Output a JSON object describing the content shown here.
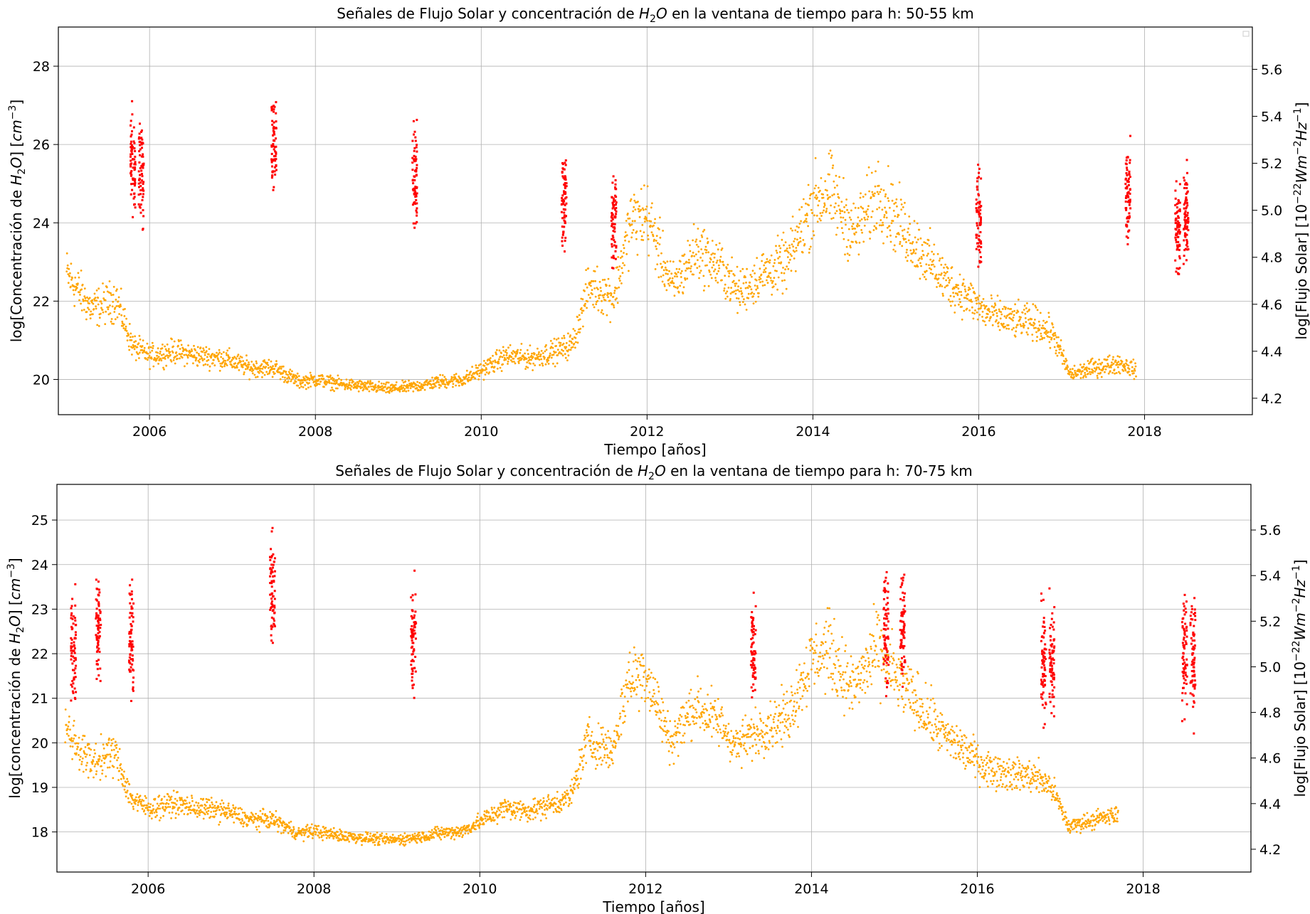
{
  "chart_data": [
    {
      "type": "scatter",
      "title_parts": [
        "Señales de Flujo Solar y concentración de ",
        "H",
        "2",
        "O",
        " en la ventana de tiempo para h: 50-55 km"
      ],
      "xlabel": "Tiempo [años]",
      "ylabel_parts": [
        "log[Concentración de ",
        "H",
        "2",
        "O",
        "] [",
        "cm",
        "−3",
        "]"
      ],
      "y2label_parts": [
        "log[Flujo Solar] [10",
        "−22",
        "Wm",
        "−2",
        "Hz",
        "−1",
        "]"
      ],
      "xlim": [
        2004.9,
        2019.3
      ],
      "ylim": [
        19.1,
        29.0
      ],
      "y2lim": [
        4.13,
        5.78
      ],
      "xticks": [
        "2006",
        "2008",
        "2010",
        "2012",
        "2014",
        "2016",
        "2018"
      ],
      "yticks": [
        "20",
        "22",
        "24",
        "26",
        "28"
      ],
      "y2ticks": [
        "4.2",
        "4.4",
        "4.6",
        "4.8",
        "5.0",
        "5.2",
        "5.4",
        "5.6"
      ],
      "grid": true,
      "legend": "top-right (empty)",
      "series": [
        {
          "axis": "right",
          "color": "#ffa500",
          "values": [
            [
              2005.0,
              4.73
            ],
            [
              2005.3,
              4.58
            ],
            [
              2005.6,
              4.62
            ],
            [
              2005.8,
              4.42
            ],
            [
              2006.0,
              4.38
            ],
            [
              2006.3,
              4.4
            ],
            [
              2006.6,
              4.38
            ],
            [
              2006.9,
              4.37
            ],
            [
              2007.2,
              4.33
            ],
            [
              2007.5,
              4.33
            ],
            [
              2007.8,
              4.27
            ],
            [
              2008.0,
              4.28
            ],
            [
              2008.3,
              4.26
            ],
            [
              2008.6,
              4.25
            ],
            [
              2008.9,
              4.24
            ],
            [
              2009.2,
              4.25
            ],
            [
              2009.5,
              4.27
            ],
            [
              2009.8,
              4.28
            ],
            [
              2010.0,
              4.32
            ],
            [
              2010.3,
              4.38
            ],
            [
              2010.6,
              4.37
            ],
            [
              2010.9,
              4.4
            ],
            [
              2011.1,
              4.43
            ],
            [
              2011.3,
              4.68
            ],
            [
              2011.6,
              4.63
            ],
            [
              2011.8,
              4.95
            ],
            [
              2012.0,
              4.98
            ],
            [
              2012.3,
              4.67
            ],
            [
              2012.6,
              4.83
            ],
            [
              2012.9,
              4.75
            ],
            [
              2013.1,
              4.65
            ],
            [
              2013.4,
              4.73
            ],
            [
              2013.7,
              4.78
            ],
            [
              2014.0,
              5.03
            ],
            [
              2014.2,
              5.08
            ],
            [
              2014.5,
              4.9
            ],
            [
              2014.8,
              5.08
            ],
            [
              2015.0,
              4.96
            ],
            [
              2015.3,
              4.83
            ],
            [
              2015.6,
              4.7
            ],
            [
              2015.9,
              4.62
            ],
            [
              2016.1,
              4.56
            ],
            [
              2016.4,
              4.53
            ],
            [
              2016.7,
              4.52
            ],
            [
              2016.9,
              4.47
            ],
            [
              2017.1,
              4.3
            ],
            [
              2017.4,
              4.33
            ],
            [
              2017.7,
              4.35
            ],
            [
              2017.9,
              4.32
            ]
          ]
        },
        {
          "axis": "left",
          "color": "#ff0000",
          "values": [
            [
              2005.8,
              25.5
            ],
            [
              2005.9,
              25.3
            ],
            [
              2007.5,
              26.0
            ],
            [
              2009.2,
              25.2
            ],
            [
              2011.0,
              24.6
            ],
            [
              2011.6,
              24.2
            ],
            [
              2016.0,
              24.0
            ],
            [
              2017.8,
              24.8
            ],
            [
              2018.4,
              23.8
            ],
            [
              2018.5,
              24.3
            ]
          ]
        }
      ]
    },
    {
      "type": "scatter",
      "title_parts": [
        "Señales de Flujo Solar y concentración de ",
        "H",
        "2",
        "O",
        " en la ventana de tiempo para h: 70-75 km"
      ],
      "xlabel": "Tiempo [años]",
      "ylabel_parts": [
        "log[concentración de ",
        "H",
        "2",
        "O",
        "] [",
        "cm",
        "−3",
        "]"
      ],
      "y2label_parts": [
        "log[Flujo Solar] [10",
        "−22",
        "Wm",
        "−2",
        "Hz",
        "−1",
        "]"
      ],
      "xlim": [
        2004.9,
        2019.3
      ],
      "ylim": [
        17.1,
        25.8
      ],
      "y2lim": [
        4.1,
        5.8
      ],
      "xticks": [
        "2006",
        "2008",
        "2010",
        "2012",
        "2014",
        "2016",
        "2018"
      ],
      "yticks": [
        "18",
        "19",
        "20",
        "21",
        "22",
        "23",
        "24",
        "25"
      ],
      "y2ticks": [
        "4.2",
        "4.4",
        "4.6",
        "4.8",
        "5.0",
        "5.2",
        "5.4",
        "5.6"
      ],
      "grid": true,
      "series": [
        {
          "axis": "right",
          "color": "#ffa500",
          "values": [
            [
              2005.0,
              4.73
            ],
            [
              2005.3,
              4.58
            ],
            [
              2005.6,
              4.62
            ],
            [
              2005.8,
              4.42
            ],
            [
              2006.0,
              4.38
            ],
            [
              2006.3,
              4.4
            ],
            [
              2006.6,
              4.38
            ],
            [
              2006.9,
              4.37
            ],
            [
              2007.2,
              4.33
            ],
            [
              2007.5,
              4.33
            ],
            [
              2007.8,
              4.27
            ],
            [
              2008.0,
              4.28
            ],
            [
              2008.3,
              4.26
            ],
            [
              2008.6,
              4.25
            ],
            [
              2008.9,
              4.24
            ],
            [
              2009.2,
              4.25
            ],
            [
              2009.5,
              4.27
            ],
            [
              2009.8,
              4.28
            ],
            [
              2010.0,
              4.32
            ],
            [
              2010.3,
              4.38
            ],
            [
              2010.6,
              4.37
            ],
            [
              2010.9,
              4.4
            ],
            [
              2011.1,
              4.43
            ],
            [
              2011.3,
              4.68
            ],
            [
              2011.6,
              4.63
            ],
            [
              2011.8,
              4.95
            ],
            [
              2012.0,
              4.98
            ],
            [
              2012.3,
              4.67
            ],
            [
              2012.6,
              4.83
            ],
            [
              2012.9,
              4.75
            ],
            [
              2013.1,
              4.65
            ],
            [
              2013.4,
              4.73
            ],
            [
              2013.7,
              4.78
            ],
            [
              2014.0,
              5.03
            ],
            [
              2014.2,
              5.08
            ],
            [
              2014.5,
              4.9
            ],
            [
              2014.8,
              5.08
            ],
            [
              2015.0,
              4.96
            ],
            [
              2015.3,
              4.83
            ],
            [
              2015.6,
              4.7
            ],
            [
              2015.9,
              4.62
            ],
            [
              2016.1,
              4.56
            ],
            [
              2016.4,
              4.53
            ],
            [
              2016.7,
              4.52
            ],
            [
              2016.9,
              4.47
            ],
            [
              2017.1,
              4.3
            ],
            [
              2017.4,
              4.33
            ],
            [
              2017.7,
              4.35
            ]
          ]
        },
        {
          "axis": "left",
          "color": "#ff0000",
          "values": [
            [
              2005.1,
              22.1
            ],
            [
              2005.4,
              22.5
            ],
            [
              2005.8,
              22.4
            ],
            [
              2007.5,
              23.3
            ],
            [
              2009.2,
              22.3
            ],
            [
              2013.3,
              22.0
            ],
            [
              2014.9,
              22.6
            ],
            [
              2015.1,
              22.6
            ],
            [
              2016.8,
              21.8
            ],
            [
              2016.9,
              21.9
            ],
            [
              2018.5,
              22.0
            ],
            [
              2018.6,
              21.9
            ]
          ]
        }
      ]
    }
  ]
}
